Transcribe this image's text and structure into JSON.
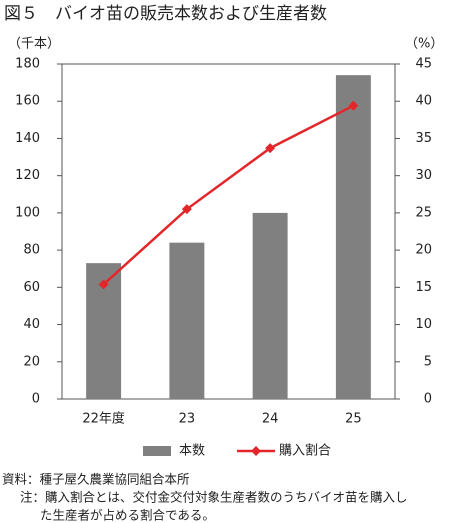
{
  "chart_data": {
    "type": "bar-line",
    "title": "図５　バイオ苗の販売本数および生産者数",
    "y_label": "（千本）",
    "y2_label": "（%）",
    "categories": [
      "22年度",
      "23",
      "24",
      "25"
    ],
    "series": [
      {
        "name": "本数",
        "type": "bar",
        "color": "#808080",
        "values": [
          73,
          84,
          100,
          174
        ]
      },
      {
        "name": "購入割合",
        "type": "line",
        "color": "#e3262a",
        "axis": "y2",
        "values": [
          15.4,
          25.5,
          33.7,
          39.4
        ]
      }
    ],
    "ylim": [
      0,
      180
    ],
    "yticks": [
      0,
      20,
      40,
      60,
      80,
      100,
      120,
      140,
      160,
      180
    ],
    "y2lim": [
      0,
      45
    ],
    "y2ticks": [
      0,
      5,
      10,
      15,
      20,
      25,
      30,
      35,
      40,
      45
    ],
    "legend": "bottom",
    "notes": [
      "資料：種子屋久農業協同組合本所",
      "注：購入割合とは、交付金交付対象生産者数のうちバイオ苗を購入し",
      "た生産者が占める割合である。"
    ]
  }
}
